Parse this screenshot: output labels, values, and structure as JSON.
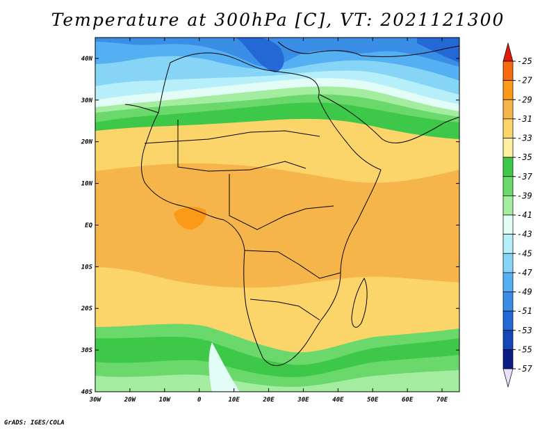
{
  "title": "Temperature at 300hPa [C], VT: 2021121300",
  "credit": "GrADS: IGES/COLA",
  "map": {
    "lon_range": [
      -30,
      75
    ],
    "lat_range": [
      -40,
      45
    ],
    "x_ticks": [
      "30W",
      "20W",
      "10W",
      "0",
      "10E",
      "20E",
      "30E",
      "40E",
      "50E",
      "60E",
      "70E"
    ],
    "x_tick_lons": [
      -30,
      -20,
      -10,
      0,
      10,
      20,
      30,
      40,
      50,
      60,
      70
    ],
    "y_ticks": [
      "40N",
      "30N",
      "20N",
      "10N",
      "EQ",
      "10S",
      "20S",
      "30S",
      "40S"
    ],
    "y_tick_lats": [
      40,
      30,
      20,
      10,
      0,
      -10,
      -20,
      -30,
      -40
    ]
  },
  "colorbar": {
    "labels": [
      "-25",
      "-27",
      "-29",
      "-31",
      "-33",
      "-35",
      "-37",
      "-39",
      "-41",
      "-43",
      "-45",
      "-47",
      "-49",
      "-51",
      "-53",
      "-55",
      "-57"
    ],
    "colors": [
      "#f03a12",
      "#f86a10",
      "#fa9a18",
      "#f6b54a",
      "#fbd46a",
      "#fdeea0",
      "#3ec84a",
      "#6ad86a",
      "#a4eca0",
      "#e2fcf6",
      "#b6eefa",
      "#86d4f6",
      "#54b0f2",
      "#3a8ee6",
      "#2468d6",
      "#1446b8",
      "#0a1e86"
    ],
    "top_cap_color": "#e01a0a",
    "bottom_cap_color": "#e8e0fc"
  },
  "field_colors": {
    "c25": "#f03a12",
    "c27": "#f86a10",
    "c29": "#fa9a18",
    "c31": "#f6b54a",
    "c33": "#fbd46a",
    "c35": "#fdeea0",
    "c37": "#3ec84a",
    "c39": "#6ad86a",
    "c41": "#a4eca0",
    "c43": "#e2fcf6",
    "c45": "#b6eefa",
    "c47": "#86d4f6",
    "c49": "#54b0f2",
    "c51": "#3a8ee6",
    "c53": "#2468d6"
  }
}
